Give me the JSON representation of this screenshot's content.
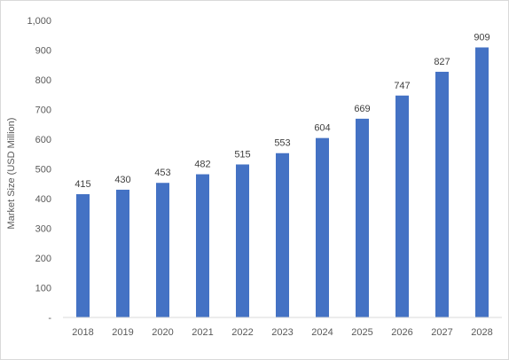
{
  "chart_data": {
    "type": "bar",
    "title": "",
    "xlabel": "",
    "ylabel": "Market Size (USD Million)",
    "categories": [
      "2018",
      "2019",
      "2020",
      "2021",
      "2022",
      "2023",
      "2024",
      "2025",
      "2026",
      "2027",
      "2028"
    ],
    "values": [
      415,
      430,
      453,
      482,
      515,
      553,
      604,
      669,
      747,
      827,
      909
    ],
    "ylim": [
      0,
      1000
    ],
    "yticks": [
      0,
      100,
      200,
      300,
      400,
      500,
      600,
      700,
      800,
      900,
      1000
    ],
    "ytick_labels": [
      "-",
      "100",
      "200",
      "300",
      "400",
      "500",
      "600",
      "700",
      "800",
      "900",
      "1,000"
    ],
    "grid": false,
    "legend": "none",
    "data_labels": true,
    "bar_color": "#4472C4"
  }
}
